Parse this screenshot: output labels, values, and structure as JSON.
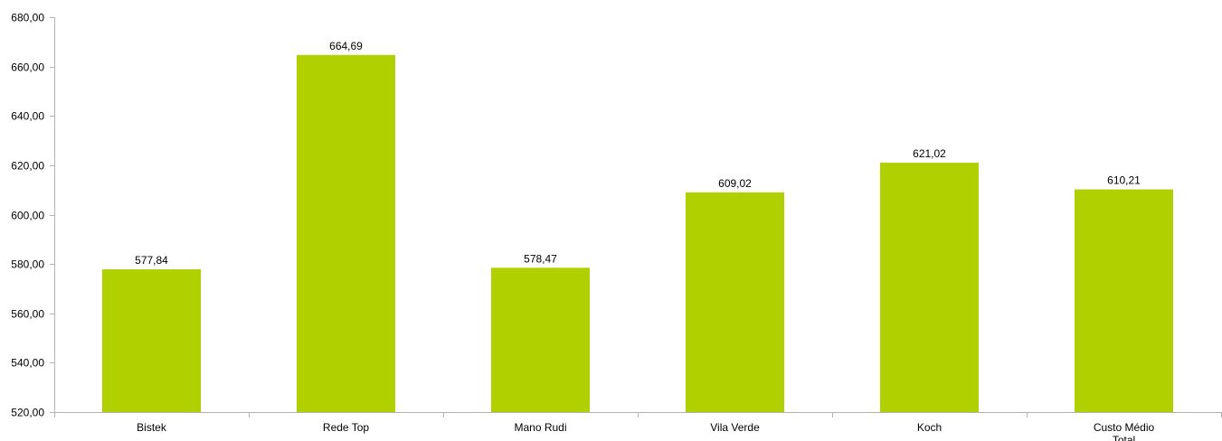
{
  "chart_data": {
    "type": "bar",
    "categories": [
      "Bistek",
      "Rede Top",
      "Mano Rudi",
      "Vila Verde",
      "Koch",
      "Custo Médio Total"
    ],
    "values": [
      577.84,
      664.69,
      578.47,
      609.02,
      621.02,
      610.21
    ],
    "value_labels": [
      "577,84",
      "664,69",
      "578,47",
      "609,02",
      "621,02",
      "610,21"
    ],
    "y_ticks": [
      520,
      540,
      560,
      580,
      600,
      620,
      640,
      660,
      680
    ],
    "y_tick_labels": [
      "520,00",
      "540,00",
      "560,00",
      "580,00",
      "600,00",
      "620,00",
      "640,00",
      "660,00",
      "680,00"
    ],
    "ylim": [
      520,
      680
    ],
    "title": "",
    "xlabel": "",
    "ylabel": "",
    "grid": false,
    "legend": "none",
    "bar_color": "#b0d000",
    "axis_color": "#b3b3b3"
  }
}
